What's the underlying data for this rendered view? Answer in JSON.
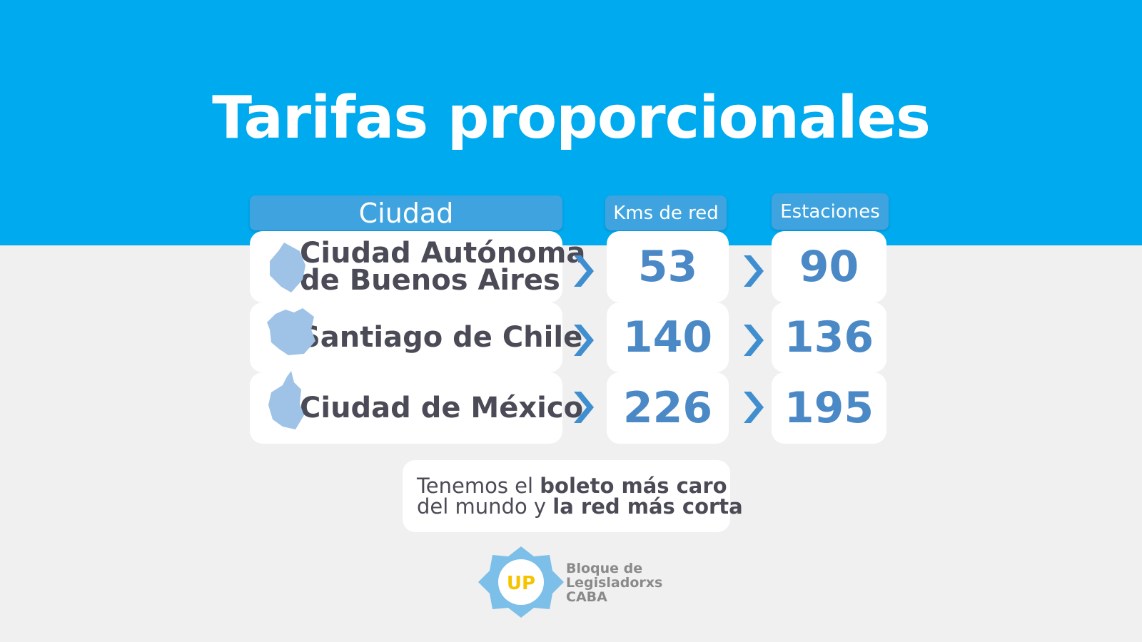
{
  "title": "Tarifas proporcionales",
  "table": {
    "headers": [
      "Ciudad",
      "Kms de red",
      "Estaciones"
    ],
    "rows": [
      {
        "city": [
          "Ciudad Autónoma",
          "de Buenos Aires"
        ],
        "kms": 53,
        "stations": 90
      },
      {
        "city": [
          "Santiago de Chile"
        ],
        "kms": 140,
        "stations": 136
      },
      {
        "city": [
          "Ciudad de México"
        ],
        "kms": 226,
        "stations": 195
      }
    ]
  },
  "note": {
    "lines": [
      [
        {
          "text": "Tenemos el ",
          "bold": false
        },
        {
          "text": "boleto más caro",
          "bold": true
        }
      ],
      [
        {
          "text": "del mundo y ",
          "bold": false
        },
        {
          "text": "la red más corta",
          "bold": true
        }
      ]
    ]
  },
  "logo": {
    "mark": "UP",
    "lines": [
      "Bloque de",
      "Legisladorxs",
      "CABA"
    ]
  }
}
